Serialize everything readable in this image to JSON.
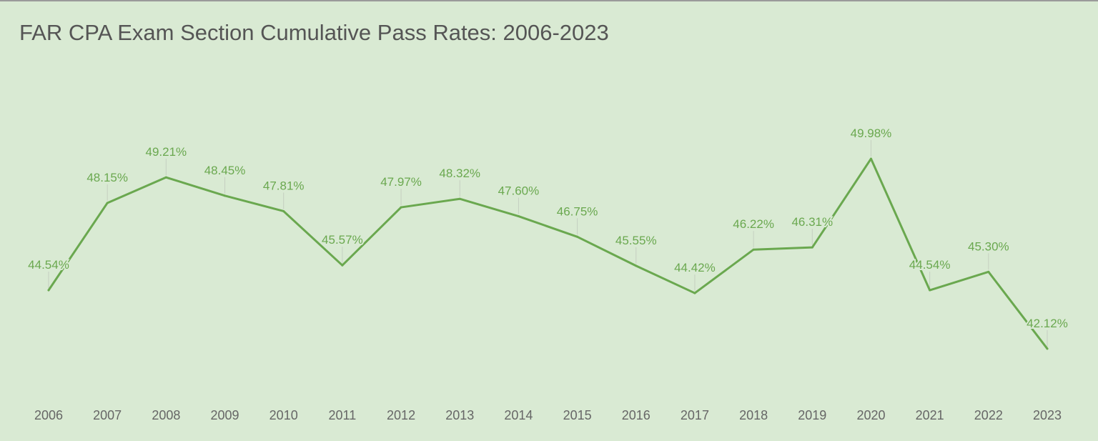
{
  "chart_data": {
    "type": "line",
    "title": "FAR CPA Exam Section Cumulative Pass Rates: 2006-2023",
    "xlabel": "",
    "ylabel": "",
    "categories": [
      "2006",
      "2007",
      "2008",
      "2009",
      "2010",
      "2011",
      "2012",
      "2013",
      "2014",
      "2015",
      "2016",
      "2017",
      "2018",
      "2019",
      "2020",
      "2021",
      "2022",
      "2023"
    ],
    "values": [
      44.54,
      48.15,
      49.21,
      48.45,
      47.81,
      45.57,
      47.97,
      48.32,
      47.6,
      46.75,
      45.55,
      44.42,
      46.22,
      46.31,
      49.98,
      44.54,
      45.3,
      42.12
    ],
    "data_labels": [
      "44.54%",
      "48.15%",
      "49.21%",
      "48.45%",
      "47.81%",
      "45.57%",
      "47.97%",
      "48.32%",
      "47.60%",
      "46.75%",
      "45.55%",
      "44.42%",
      "46.22%",
      "46.31%",
      "49.98%",
      "44.54%",
      "45.30%",
      "42.12%"
    ],
    "ylim": [
      40,
      53
    ],
    "grid": false,
    "legend": "none",
    "colors": {
      "line": "#6aa84f",
      "background": "#d9ead3",
      "label_tick": "#c5cfc0"
    }
  }
}
